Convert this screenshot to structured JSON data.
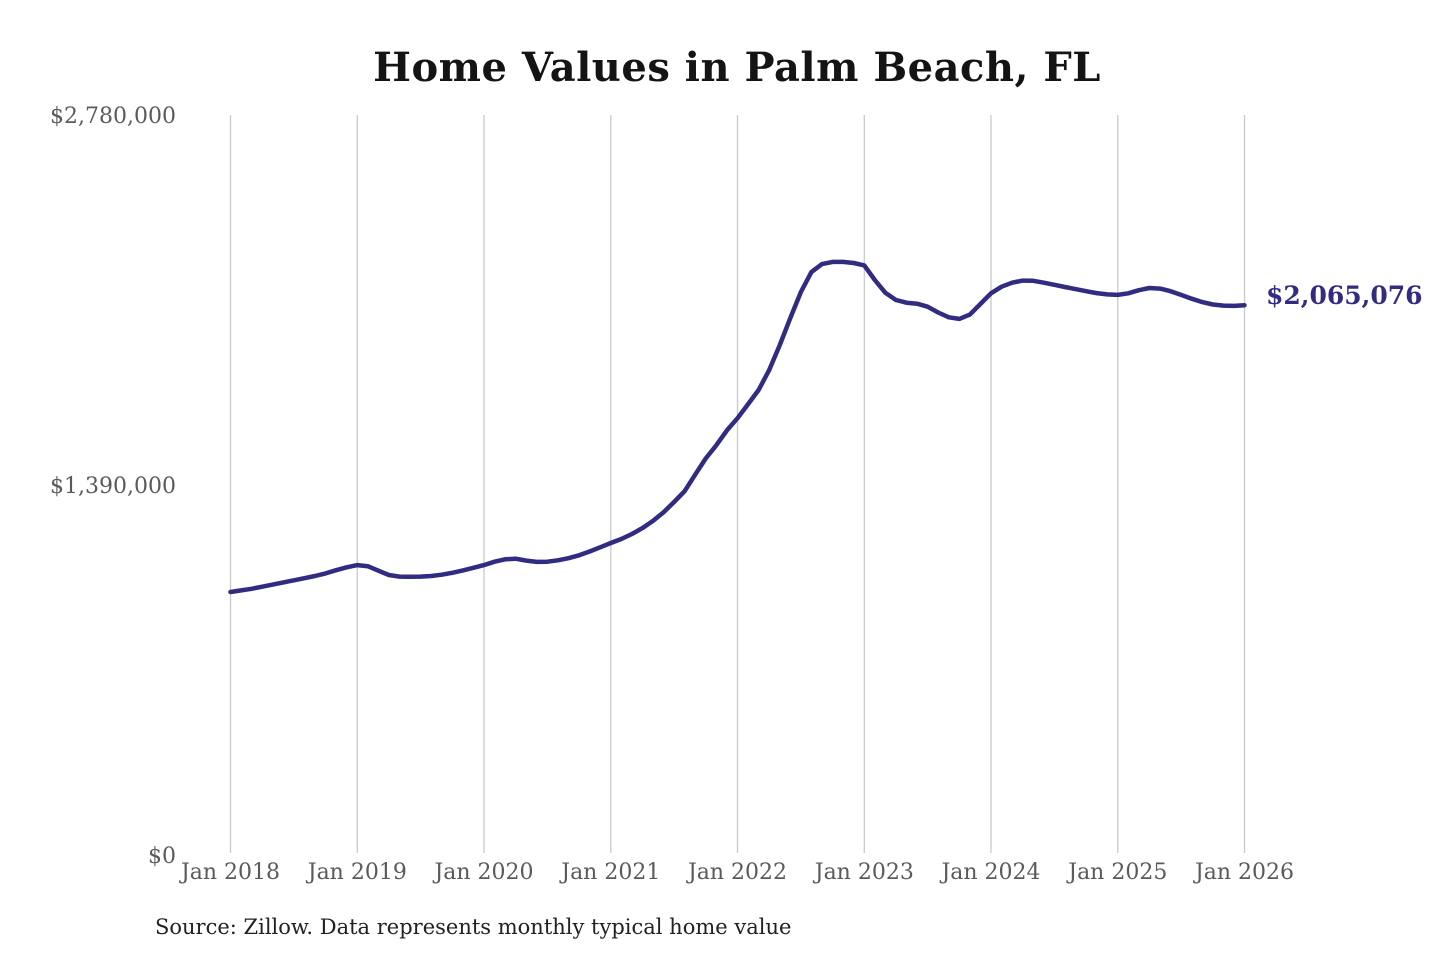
{
  "page": {
    "background": "#ffffff"
  },
  "chart_data": {
    "type": "line",
    "title": "Home Values in Palm Beach, FL",
    "source_note": "Source: Zillow. Data represents monthly typical home value",
    "series_name": "Monthly typical home value",
    "end_label": "$2,065,076",
    "end_value": 2065076,
    "x_start": "2018-01",
    "x_interval": "month",
    "x_tick_labels": [
      "Jan 2018",
      "Jan 2019",
      "Jan 2020",
      "Jan 2021",
      "Jan 2022",
      "Jan 2023",
      "Jan 2024",
      "Jan 2025",
      "Jan 2026"
    ],
    "y_ticks": [
      {
        "value": 0,
        "label": "$0"
      },
      {
        "value": 1390000,
        "label": "$1,390,000"
      },
      {
        "value": 2780000,
        "label": "$2,780,000"
      }
    ],
    "ylim": [
      0,
      2780000
    ],
    "grid": "vertical-only",
    "legend": "none",
    "values": [
      988000,
      994000,
      1000000,
      1008000,
      1016000,
      1024000,
      1032000,
      1040000,
      1048000,
      1058000,
      1070000,
      1081000,
      1089000,
      1085000,
      1068000,
      1052000,
      1046000,
      1045000,
      1046000,
      1048000,
      1053000,
      1060000,
      1069000,
      1079000,
      1089000,
      1102000,
      1111000,
      1113000,
      1106000,
      1101000,
      1102000,
      1107000,
      1115000,
      1126000,
      1140000,
      1156000,
      1172000,
      1187000,
      1206000,
      1228000,
      1255000,
      1288000,
      1326000,
      1367000,
      1430000,
      1490000,
      1540000,
      1595000,
      1641000,
      1694000,
      1747000,
      1822000,
      1916000,
      2017000,
      2115000,
      2190000,
      2220000,
      2228000,
      2228000,
      2224000,
      2215000,
      2160000,
      2112000,
      2085000,
      2075000,
      2071000,
      2060000,
      2038000,
      2020000,
      2014000,
      2030000,
      2070000,
      2110000,
      2135000,
      2150000,
      2158000,
      2157000,
      2150000,
      2142000,
      2134000,
      2126000,
      2118000,
      2111000,
      2106000,
      2104000,
      2110000,
      2122000,
      2130000,
      2128000,
      2118000,
      2104000,
      2090000,
      2077000,
      2068000,
      2064000,
      2063000,
      2065076
    ],
    "colors": {
      "line": "#312c82",
      "end_label": "#312c82",
      "title": "#141414",
      "axis_labels": "#5a5a5a",
      "gridlines": "#c9cacb",
      "source_note": "#212121",
      "background": "#ffffff"
    }
  }
}
